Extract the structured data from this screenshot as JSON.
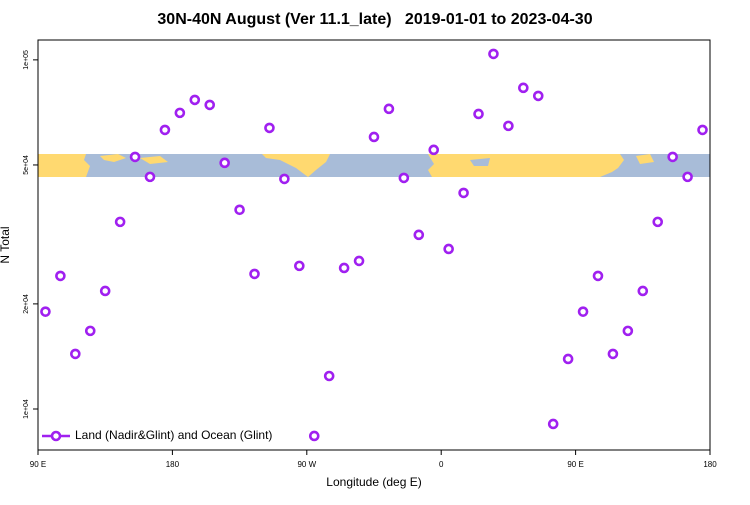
{
  "chart_data": {
    "type": "scatter",
    "title": "30N-40N August (Ver 11.1_late)   2019-01-01 to 2023-04-30",
    "xlabel": "Longitude (deg E)",
    "ylabel": "N Total",
    "xlim": [
      90,
      540
    ],
    "ylim": [
      7630,
      114000
    ],
    "ylog": true,
    "legend": "bottom-left",
    "xticks": [
      {
        "value": 90,
        "label": "90 E"
      },
      180,
      {
        "value": 270,
        "label": "90 W"
      },
      {
        "value": 360,
        "label": "0"
      },
      {
        "value": 450,
        "label": "90 E"
      },
      {
        "value": 540,
        "label": "180"
      }
    ],
    "yticks": [
      {
        "value": 10000,
        "label": "1e+04"
      },
      {
        "value": 20000,
        "label": "2e+04"
      },
      {
        "value": 50000,
        "label": "5e+04"
      },
      {
        "value": 100000,
        "label": "1e+05"
      }
    ],
    "x": [
      95,
      105,
      115,
      125,
      135,
      145,
      155,
      165,
      175,
      185,
      195,
      205,
      215,
      225,
      235,
      245,
      255,
      265,
      275,
      285,
      295,
      305,
      315,
      325,
      335,
      345,
      355,
      365,
      375,
      385,
      395,
      405,
      415,
      425,
      435,
      445,
      455,
      465,
      475,
      485,
      495,
      505,
      515,
      525,
      535
    ],
    "series": [
      {
        "name": "Land (Nadir&Glint) and Ocean (Glint)",
        "color": "#a020f0",
        "values": [
          19000,
          24050,
          14380,
          16740,
          21780,
          34350,
          52720,
          46220,
          63000,
          70500,
          76800,
          74300,
          50700,
          37200,
          24370,
          63850,
          45600,
          25700,
          8370,
          12430,
          25350,
          26550,
          60150,
          72400,
          45900,
          31540,
          55240,
          28730,
          41580,
          70000,
          104000,
          64700,
          83150,
          78850,
          9060,
          13910,
          19000,
          24050,
          14380,
          16740,
          21780,
          34350,
          52720,
          46220,
          63000
        ]
      }
    ]
  }
}
